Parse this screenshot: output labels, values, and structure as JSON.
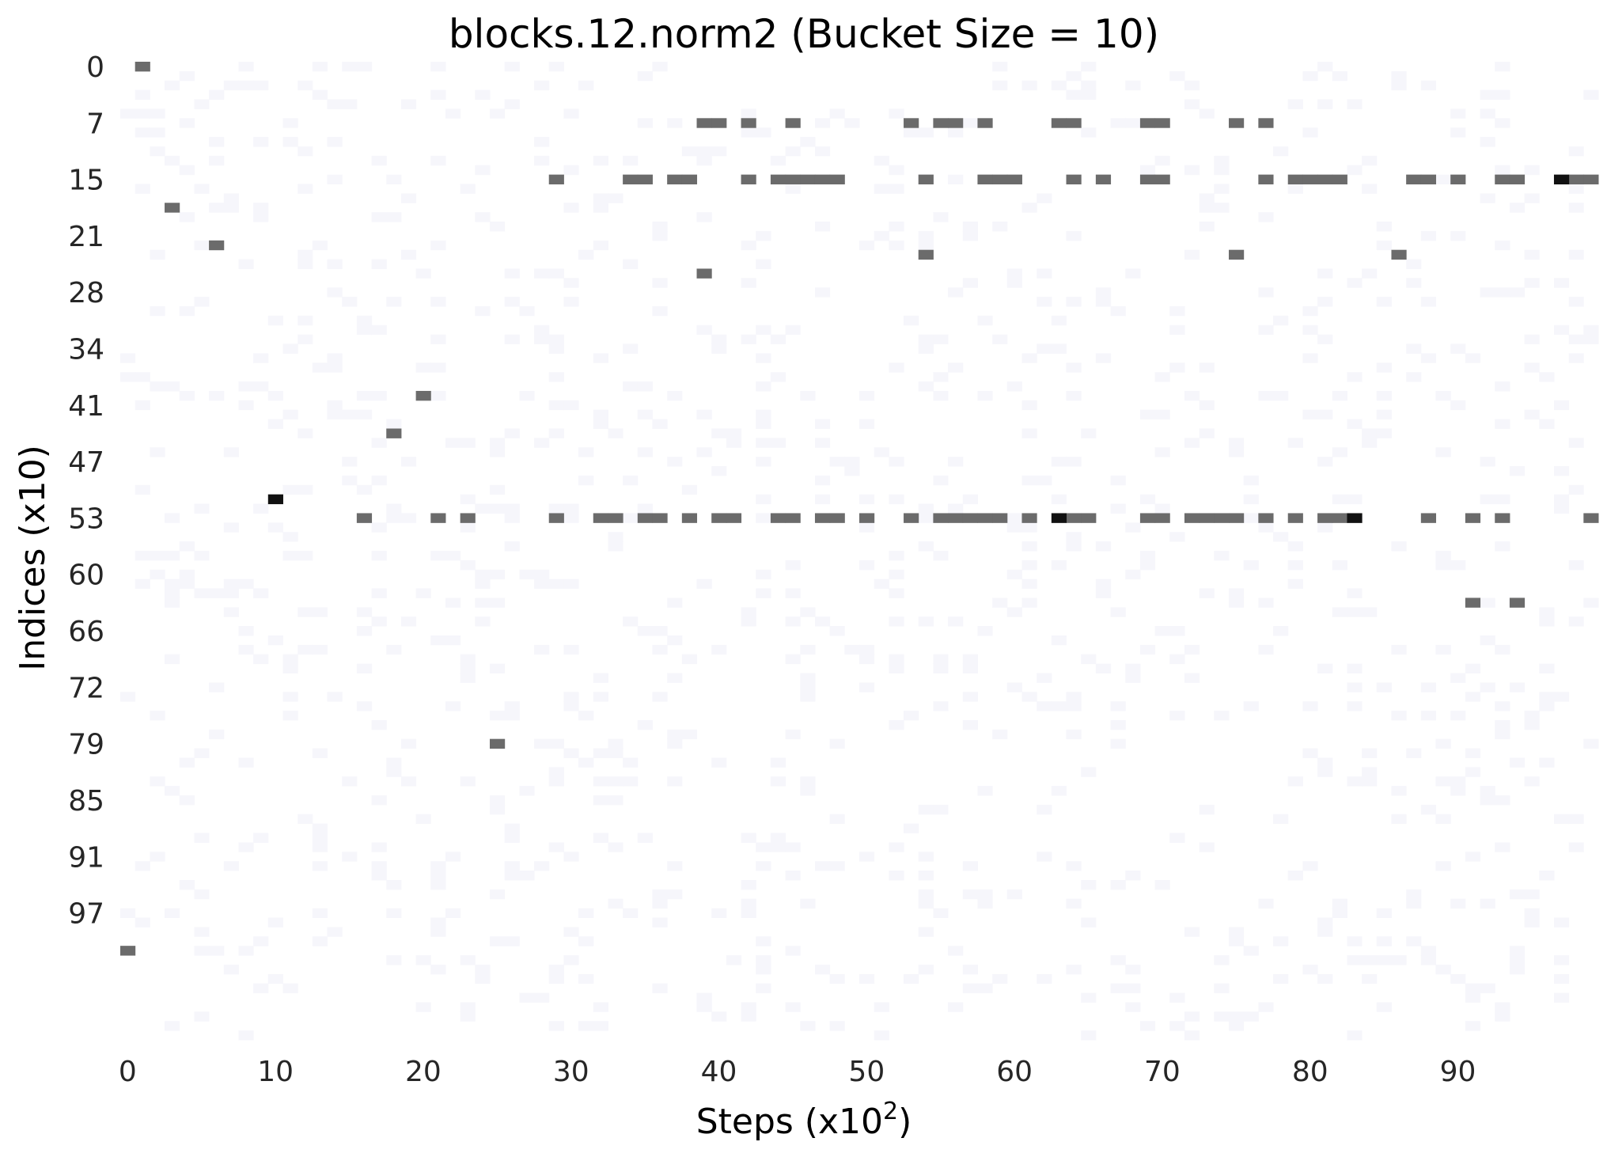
{
  "chart_data": {
    "type": "heatmap",
    "title": "blocks.12.norm2 (Bucket Size = 10)",
    "xlabel": "Steps (x10",
    "xlabel_sup": "2",
    "xlabel_end": ")",
    "ylabel": "Indices (x10)",
    "x_range": [
      0,
      99
    ],
    "y_range": [
      0,
      103
    ],
    "x_ticks": [
      0,
      10,
      20,
      30,
      40,
      50,
      60,
      70,
      80,
      90
    ],
    "x_tick_labels": [
      "0",
      "10",
      "20",
      "30",
      "40",
      "50",
      "60",
      "70",
      "80",
      "90"
    ],
    "y_ticks": [
      0,
      6,
      12,
      18,
      24,
      30,
      36,
      42,
      48,
      54,
      60,
      66,
      72,
      78,
      84,
      90
    ],
    "y_tick_labels": [
      "0",
      "7",
      "15",
      "21",
      "28",
      "34",
      "41",
      "47",
      "53",
      "60",
      "66",
      "72",
      "79",
      "85",
      "91",
      "97"
    ],
    "colors": {
      "background": "#ffffff",
      "faint": "#f6f6fb",
      "medium": "#6b6b6b",
      "strong": "#111111"
    },
    "cells": {
      "medium": [
        [
          1,
          0
        ],
        [
          3,
          15
        ],
        [
          6,
          19
        ],
        [
          39,
          22
        ],
        [
          20,
          35
        ],
        [
          18,
          39
        ],
        [
          25,
          72
        ],
        [
          0,
          94
        ],
        [
          39,
          6
        ],
        [
          40,
          6
        ],
        [
          42,
          6
        ],
        [
          45,
          6
        ],
        [
          53,
          6
        ],
        [
          55,
          6
        ],
        [
          56,
          6
        ],
        [
          58,
          6
        ],
        [
          63,
          6
        ],
        [
          64,
          6
        ],
        [
          69,
          6
        ],
        [
          70,
          6
        ],
        [
          75,
          6
        ],
        [
          77,
          6
        ],
        [
          29,
          12
        ],
        [
          34,
          12
        ],
        [
          35,
          12
        ],
        [
          37,
          12
        ],
        [
          38,
          12
        ],
        [
          42,
          12
        ],
        [
          44,
          12
        ],
        [
          45,
          12
        ],
        [
          46,
          12
        ],
        [
          47,
          12
        ],
        [
          48,
          12
        ],
        [
          54,
          12
        ],
        [
          58,
          12
        ],
        [
          59,
          12
        ],
        [
          60,
          12
        ],
        [
          64,
          12
        ],
        [
          66,
          12
        ],
        [
          69,
          12
        ],
        [
          70,
          12
        ],
        [
          77,
          12
        ],
        [
          79,
          12
        ],
        [
          80,
          12
        ],
        [
          81,
          12
        ],
        [
          82,
          12
        ],
        [
          87,
          12
        ],
        [
          88,
          12
        ],
        [
          90,
          12
        ],
        [
          93,
          12
        ],
        [
          94,
          12
        ],
        [
          98,
          12
        ],
        [
          99,
          12
        ],
        [
          54,
          20
        ],
        [
          75,
          20
        ],
        [
          86,
          20
        ],
        [
          16,
          48
        ],
        [
          21,
          48
        ],
        [
          23,
          48
        ],
        [
          29,
          48
        ],
        [
          32,
          48
        ],
        [
          33,
          48
        ],
        [
          35,
          48
        ],
        [
          36,
          48
        ],
        [
          38,
          48
        ],
        [
          40,
          48
        ],
        [
          41,
          48
        ],
        [
          44,
          48
        ],
        [
          45,
          48
        ],
        [
          47,
          48
        ],
        [
          48,
          48
        ],
        [
          50,
          48
        ],
        [
          53,
          48
        ],
        [
          55,
          48
        ],
        [
          56,
          48
        ],
        [
          57,
          48
        ],
        [
          58,
          48
        ],
        [
          59,
          48
        ],
        [
          61,
          48
        ],
        [
          64,
          48
        ],
        [
          65,
          48
        ],
        [
          69,
          48
        ],
        [
          70,
          48
        ],
        [
          72,
          48
        ],
        [
          73,
          48
        ],
        [
          74,
          48
        ],
        [
          75,
          48
        ],
        [
          77,
          48
        ],
        [
          79,
          48
        ],
        [
          81,
          48
        ],
        [
          82,
          48
        ],
        [
          88,
          48
        ],
        [
          91,
          48
        ],
        [
          93,
          48
        ],
        [
          99,
          48
        ],
        [
          91,
          57
        ],
        [
          94,
          57
        ]
      ],
      "strong": [
        [
          10,
          46
        ],
        [
          97,
          12
        ],
        [
          63,
          48
        ],
        [
          83,
          48
        ]
      ]
    }
  }
}
